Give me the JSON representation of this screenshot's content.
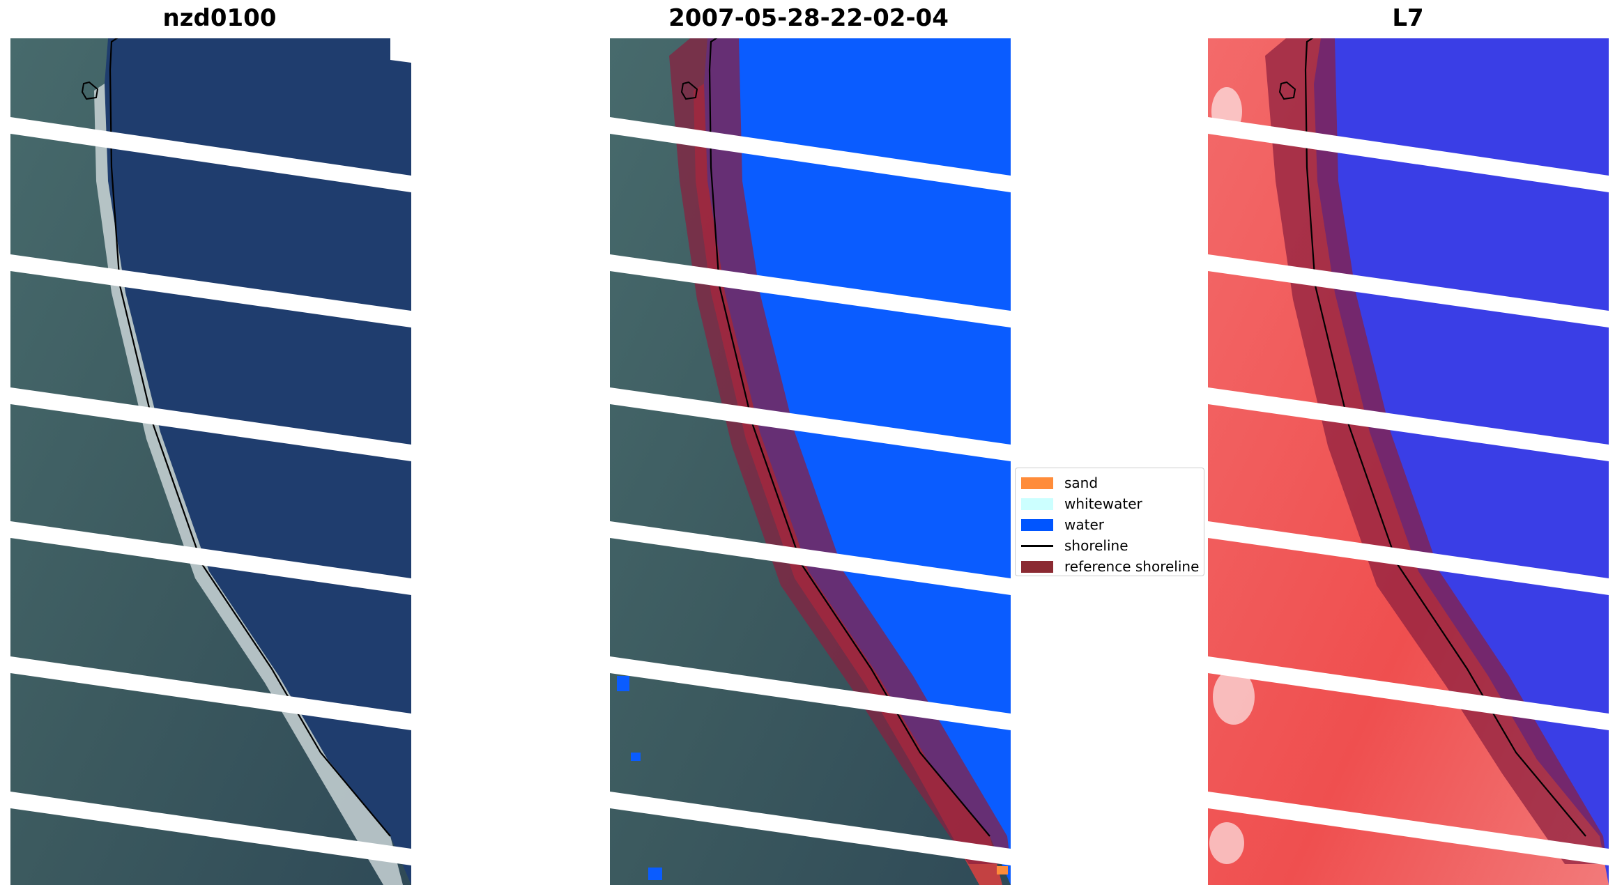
{
  "panels": [
    {
      "title": "nzd0100"
    },
    {
      "title": "2007-05-28-22-02-04"
    },
    {
      "title": "L7"
    }
  ],
  "legend": {
    "items": [
      {
        "label": "sand",
        "color": "#ff8c3a",
        "kind": "patch"
      },
      {
        "label": "whitewater",
        "color": "#ccffff",
        "kind": "patch"
      },
      {
        "label": "water",
        "color": "#0055ff",
        "kind": "patch"
      },
      {
        "label": "shoreline",
        "color": "#000000",
        "kind": "line"
      },
      {
        "label": "reference shoreline",
        "color": "#8b2a32",
        "kind": "patch"
      }
    ]
  },
  "colors": {
    "land": "#3f5e63",
    "ocean": "#1f3d6e",
    "water_class": "#0a5cff",
    "index_land": "#f05656",
    "index_water": "#3a3ee6",
    "reference_buffer": "#8b1e3f"
  }
}
